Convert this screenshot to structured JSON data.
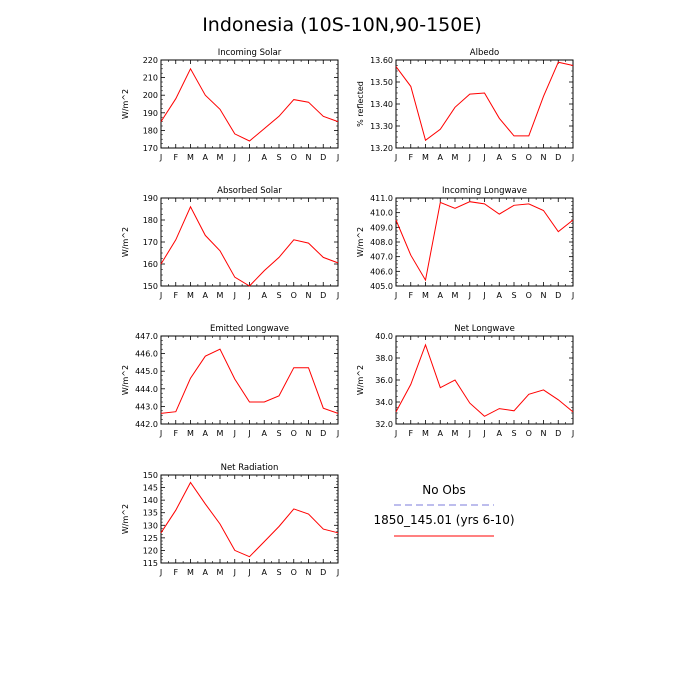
{
  "title": "Indonesia (10S-10N,90-150E)",
  "months": [
    "J",
    "F",
    "M",
    "A",
    "M",
    "J",
    "J",
    "A",
    "S",
    "O",
    "N",
    "D",
    "J"
  ],
  "legend": {
    "obs_label": "No Obs",
    "model_label": "1850_145.01 (yrs 6-10)",
    "obs_color": "#7b7bdb",
    "model_color": "#ff0000"
  },
  "chart_data": [
    {
      "type": "line",
      "title": "Incoming Solar",
      "ylabel": "W/m^2",
      "ylim": [
        170,
        220
      ],
      "yticks": [
        170,
        180,
        190,
        200,
        210,
        220
      ],
      "ytick_labels": [
        "170",
        "180",
        "190",
        "200",
        "210",
        "220"
      ],
      "categories": [
        "J",
        "F",
        "M",
        "A",
        "M",
        "J",
        "J",
        "A",
        "S",
        "O",
        "N",
        "D",
        "J"
      ],
      "series": [
        {
          "name": "1850_145.01 (yrs 6-10)",
          "values": [
            185,
            198,
            215,
            200,
            192,
            178,
            174,
            181,
            188,
            197.5,
            196,
            188,
            185
          ]
        }
      ]
    },
    {
      "type": "line",
      "title": "Albedo",
      "ylabel": "% reflected",
      "ylim": [
        13.2,
        13.6
      ],
      "yticks": [
        13.2,
        13.3,
        13.4,
        13.5,
        13.6
      ],
      "ytick_labels": [
        "13.20",
        "13.30",
        "13.40",
        "13.50",
        "13.60"
      ],
      "categories": [
        "J",
        "F",
        "M",
        "A",
        "M",
        "J",
        "J",
        "A",
        "S",
        "O",
        "N",
        "D",
        "J"
      ],
      "series": [
        {
          "name": "1850_145.01 (yrs 6-10)",
          "values": [
            13.57,
            13.48,
            13.235,
            13.285,
            13.385,
            13.445,
            13.45,
            13.335,
            13.255,
            13.255,
            13.435,
            13.59,
            13.575
          ]
        }
      ]
    },
    {
      "type": "line",
      "title": "Absorbed Solar",
      "ylabel": "W/m^2",
      "ylim": [
        150,
        190
      ],
      "yticks": [
        150,
        160,
        170,
        180,
        190
      ],
      "ytick_labels": [
        "150",
        "160",
        "170",
        "180",
        "190"
      ],
      "categories": [
        "J",
        "F",
        "M",
        "A",
        "M",
        "J",
        "J",
        "A",
        "S",
        "O",
        "N",
        "D",
        "J"
      ],
      "series": [
        {
          "name": "1850_145.01 (yrs 6-10)",
          "values": [
            160,
            171,
            186,
            173,
            166,
            154,
            150,
            157,
            163,
            171,
            169.5,
            163,
            160.5
          ]
        }
      ]
    },
    {
      "type": "line",
      "title": "Incoming Longwave",
      "ylabel": "W/m^2",
      "ylim": [
        405,
        411
      ],
      "yticks": [
        405,
        406,
        407,
        408,
        409,
        410,
        411
      ],
      "ytick_labels": [
        "405.0",
        "406.0",
        "407.0",
        "408.0",
        "409.0",
        "410.0",
        "411.0"
      ],
      "categories": [
        "J",
        "F",
        "M",
        "A",
        "M",
        "J",
        "J",
        "A",
        "S",
        "O",
        "N",
        "D",
        "J"
      ],
      "series": [
        {
          "name": "1850_145.01 (yrs 6-10)",
          "values": [
            409.5,
            407.1,
            405.4,
            410.7,
            410.3,
            410.75,
            410.6,
            409.9,
            410.5,
            410.6,
            410.15,
            408.7,
            409.5
          ]
        }
      ]
    },
    {
      "type": "line",
      "title": "Emitted Longwave",
      "ylabel": "W/m^2",
      "ylim": [
        442,
        447
      ],
      "yticks": [
        442,
        443,
        444,
        445,
        446,
        447
      ],
      "ytick_labels": [
        "442.0",
        "443.0",
        "444.0",
        "445.0",
        "446.0",
        "447.0"
      ],
      "categories": [
        "J",
        "F",
        "M",
        "A",
        "M",
        "J",
        "J",
        "A",
        "S",
        "O",
        "N",
        "D",
        "J"
      ],
      "series": [
        {
          "name": "1850_145.01 (yrs 6-10)",
          "values": [
            442.6,
            442.7,
            444.6,
            445.85,
            446.25,
            444.55,
            443.25,
            443.25,
            443.6,
            445.2,
            445.2,
            442.9,
            442.6
          ]
        }
      ]
    },
    {
      "type": "line",
      "title": "Net Longwave",
      "ylabel": "W/m^2",
      "ylim": [
        32,
        40
      ],
      "yticks": [
        32,
        34,
        36,
        38,
        40
      ],
      "ytick_labels": [
        "32.0",
        "34.0",
        "36.0",
        "38.0",
        "40.0"
      ],
      "categories": [
        "J",
        "F",
        "M",
        "A",
        "M",
        "J",
        "J",
        "A",
        "S",
        "O",
        "N",
        "D",
        "J"
      ],
      "series": [
        {
          "name": "1850_145.01 (yrs 6-10)",
          "values": [
            33.1,
            35.6,
            39.2,
            35.3,
            36.0,
            33.9,
            32.7,
            33.4,
            33.2,
            34.7,
            35.1,
            34.2,
            33.1
          ]
        }
      ]
    },
    {
      "type": "line",
      "title": "Net Radiation",
      "ylabel": "W/m^2",
      "ylim": [
        115,
        150
      ],
      "yticks": [
        115,
        120,
        125,
        130,
        135,
        140,
        145,
        150
      ],
      "ytick_labels": [
        "115",
        "120",
        "125",
        "130",
        "135",
        "140",
        "145",
        "150"
      ],
      "categories": [
        "J",
        "F",
        "M",
        "A",
        "M",
        "J",
        "J",
        "A",
        "S",
        "O",
        "N",
        "D",
        "J"
      ],
      "series": [
        {
          "name": "1850_145.01 (yrs 6-10)",
          "values": [
            127,
            136,
            147,
            138.5,
            130.5,
            120,
            117.5,
            123.5,
            129.5,
            136.5,
            134.5,
            128.5,
            127
          ]
        }
      ]
    }
  ]
}
